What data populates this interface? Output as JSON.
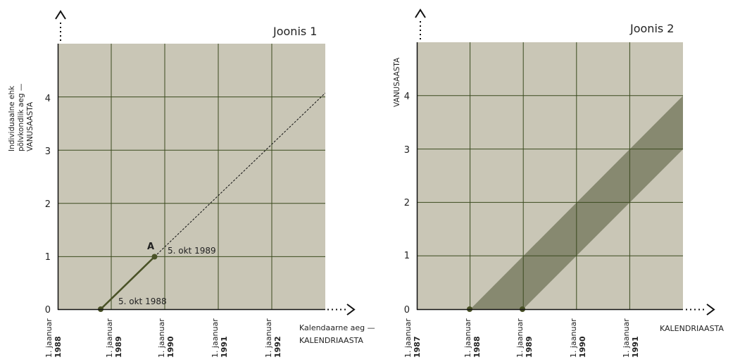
{
  "colors": {
    "panel": "#c9c6b6",
    "grid": "#3a4a1e",
    "band": "#878970",
    "line": "#4a5227",
    "point": "#4a5227",
    "axis": "#111111"
  },
  "panels": [
    {
      "title": "Joonis 1",
      "ylabel_lines": [
        "Individuaalne ehk",
        "põlvkondlik aeg —",
        "VANUSAASTA"
      ],
      "y_ticks": [
        "0",
        "1",
        "2",
        "3",
        "4"
      ],
      "x_ticks": [
        {
          "line1": "1. jaanuar",
          "line2": "1988"
        },
        {
          "line1": "1. jaanuar",
          "line2": "1989"
        },
        {
          "line1": "1. jaanuar",
          "line2": "1990"
        },
        {
          "line1": "1. jaanuar",
          "line2": "1991"
        },
        {
          "line1": "1. jaanuar",
          "line2": "1992"
        }
      ],
      "xlabel_lines": [
        "Kalendaarne aeg —",
        "KALENDRIAASTA"
      ],
      "point_label": "A",
      "annot_start": "5. okt 1988",
      "annot_end": "5. okt 1989"
    },
    {
      "title": "Joonis 2",
      "ylabel_lines": [
        "VANUSAASTA"
      ],
      "y_ticks": [
        "0",
        "1",
        "2",
        "3",
        "4"
      ],
      "x_ticks": [
        {
          "line1": "1. jaanuar",
          "line2": "1987"
        },
        {
          "line1": "1. jaanuar",
          "line2": "1988"
        },
        {
          "line1": "1. jaanuar",
          "line2": "1989"
        },
        {
          "line1": "1. jaanuar",
          "line2": "1990"
        },
        {
          "line1": "1. jaanuar",
          "line2": "1991"
        }
      ],
      "xlabel_lines": [
        "KALENDRIAASTA"
      ]
    }
  ],
  "chart_data": [
    {
      "type": "line",
      "title": "Joonis 1",
      "xlabel": "Kalendaarne aeg — KALENDRIAASTA",
      "ylabel": "Individuaalne ehk põlvkondlik aeg — VANUSAASTA",
      "x_ticks": [
        1988,
        1989,
        1990,
        1991,
        1992
      ],
      "y_ticks": [
        0,
        1,
        2,
        3,
        4
      ],
      "grid": true,
      "series": [
        {
          "style": "solid",
          "points": [
            {
              "x": 1988.76,
              "y": 0
            },
            {
              "x": 1989.76,
              "y": 1
            }
          ]
        },
        {
          "style": "dashed",
          "points": [
            {
              "x": 1989.76,
              "y": 1
            },
            {
              "x": 1993.0,
              "y": 4.24
            }
          ]
        }
      ],
      "points": [
        {
          "x": 1988.76,
          "y": 0,
          "label": "5. okt 1988"
        },
        {
          "x": 1989.76,
          "y": 1,
          "label": "A"
        }
      ]
    },
    {
      "type": "area",
      "title": "Joonis 2",
      "xlabel": "KALENDRIAASTA",
      "ylabel": "VANUSAASTA",
      "x_ticks": [
        1987,
        1988,
        1989,
        1990,
        1991
      ],
      "y_ticks": [
        0,
        1,
        2,
        3,
        4
      ],
      "grid": true,
      "band": {
        "lower_start_x": 1989,
        "upper_start_x": 1988,
        "slope": 1,
        "x_end": 1992
      },
      "points": [
        {
          "x": 1988,
          "y": 0
        },
        {
          "x": 1989,
          "y": 0
        }
      ]
    }
  ]
}
